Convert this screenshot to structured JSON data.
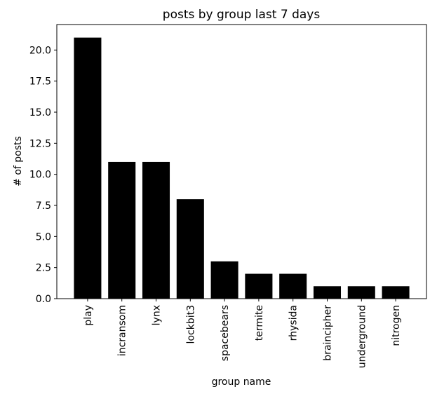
{
  "chart_data": {
    "type": "bar",
    "title": "posts by group last 7 days",
    "xlabel": "group name",
    "ylabel": "# of posts",
    "categories": [
      "play",
      "incransom",
      "lynx",
      "lockbit3",
      "spacebears",
      "termite",
      "rhysida",
      "braincipher",
      "underground",
      "nitrogen"
    ],
    "values": [
      21,
      11,
      11,
      8,
      3,
      2,
      2,
      1,
      1,
      1
    ],
    "color": "#000000",
    "ylim": [
      0,
      22.05
    ],
    "yticks": [
      {
        "value": 0,
        "label": "0.0"
      },
      {
        "value": 2.5,
        "label": "2.5"
      },
      {
        "value": 5,
        "label": "5.0"
      },
      {
        "value": 7.5,
        "label": "7.5"
      },
      {
        "value": 10,
        "label": "10.0"
      },
      {
        "value": 12.5,
        "label": "12.5"
      },
      {
        "value": 15,
        "label": "15.0"
      },
      {
        "value": 17.5,
        "label": "17.5"
      },
      {
        "value": 20,
        "label": "20.0"
      }
    ]
  }
}
